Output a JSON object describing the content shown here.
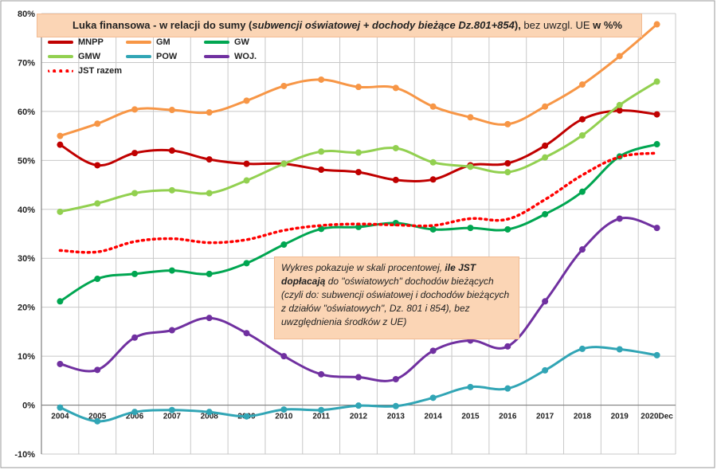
{
  "chart_data": {
    "type": "line",
    "title_parts": [
      {
        "text": "Luka finansowa - w relacji do sumy (",
        "style": "bold"
      },
      {
        "text": "subwencji oświatowej + dochody bieżące Dz.801+854",
        "style": "bold-italic"
      },
      {
        "text": "), ",
        "style": "bold"
      },
      {
        "text": "bez  uwzgl. UE   ",
        "style": "normal"
      },
      {
        "text": "w %%",
        "style": "bold"
      }
    ],
    "categories": [
      "2004",
      "2005",
      "2006",
      "2007",
      "2008",
      "2009",
      "2010",
      "2011",
      "2012",
      "2013",
      "2014",
      "2015",
      "2016",
      "2017",
      "2018",
      "2019",
      "2020Dec"
    ],
    "y_ticks": [
      "-10%",
      "0%",
      "10%",
      "20%",
      "30%",
      "40%",
      "50%",
      "60%",
      "70%",
      "80%"
    ],
    "ylim": [
      -10,
      80
    ],
    "grid": true,
    "legend_position": "top-left",
    "series": [
      {
        "name": "MNPP",
        "color": "#c00000",
        "style": "solid",
        "values": [
          53.2,
          49.0,
          51.5,
          52.0,
          50.2,
          49.3,
          49.3,
          48.1,
          47.6,
          46.0,
          46.1,
          49.0,
          49.4,
          53.0,
          58.4,
          60.2,
          59.4
        ]
      },
      {
        "name": "GM",
        "color": "#f79646",
        "style": "solid",
        "values": [
          55.0,
          57.5,
          60.4,
          60.3,
          59.8,
          62.2,
          65.2,
          66.5,
          65.0,
          64.8,
          61.0,
          58.8,
          57.4,
          61.0,
          65.5,
          71.3,
          77.8
        ]
      },
      {
        "name": "GW",
        "color": "#00a651",
        "style": "solid",
        "values": [
          21.2,
          25.8,
          26.8,
          27.5,
          26.8,
          29.0,
          32.8,
          36.0,
          36.4,
          37.2,
          35.9,
          36.2,
          35.9,
          39.0,
          43.6,
          50.8,
          53.3
        ]
      },
      {
        "name": "GMW",
        "color": "#92d050",
        "style": "solid",
        "values": [
          39.5,
          41.2,
          43.3,
          43.9,
          43.3,
          45.9,
          49.3,
          51.8,
          51.6,
          52.5,
          49.6,
          48.7,
          47.6,
          50.6,
          55.1,
          61.3,
          66.1
        ]
      },
      {
        "name": "POW",
        "color": "#31a5b5",
        "style": "solid",
        "values": [
          -0.5,
          -3.3,
          -1.4,
          -1.0,
          -1.4,
          -2.3,
          -0.9,
          -1.0,
          -0.1,
          -0.2,
          1.5,
          3.7,
          3.4,
          7.1,
          11.5,
          11.4,
          10.2
        ]
      },
      {
        "name": "WOJ.",
        "color": "#7030a0",
        "style": "solid",
        "values": [
          8.4,
          7.2,
          13.8,
          15.3,
          17.8,
          14.7,
          10.0,
          6.3,
          5.7,
          5.3,
          11.1,
          13.2,
          12.0,
          21.2,
          31.8,
          38.1,
          36.2
        ]
      },
      {
        "name": "JST razem",
        "color": "#ff0000",
        "style": "dotted",
        "values": [
          31.6,
          31.3,
          33.4,
          34.0,
          33.2,
          33.8,
          35.7,
          36.7,
          37.0,
          36.8,
          36.7,
          38.1,
          38.0,
          42.0,
          47.0,
          50.7,
          51.5
        ]
      }
    ],
    "annotation_parts": [
      {
        "text": "Wykres pokazuje w skali procentowej, ",
        "style": "italic"
      },
      {
        "text": "ile  JST dopłacają",
        "style": "bold-italic"
      },
      {
        "text": " do \"oświatowych\" dochodów bieżących (czyli do: subwencji oświatowej i dochodów bieżących z  działów \"oświatowych\", Dz. 801 i 854), bez uwzględnienia środków z UE)",
        "style": "italic"
      }
    ]
  }
}
